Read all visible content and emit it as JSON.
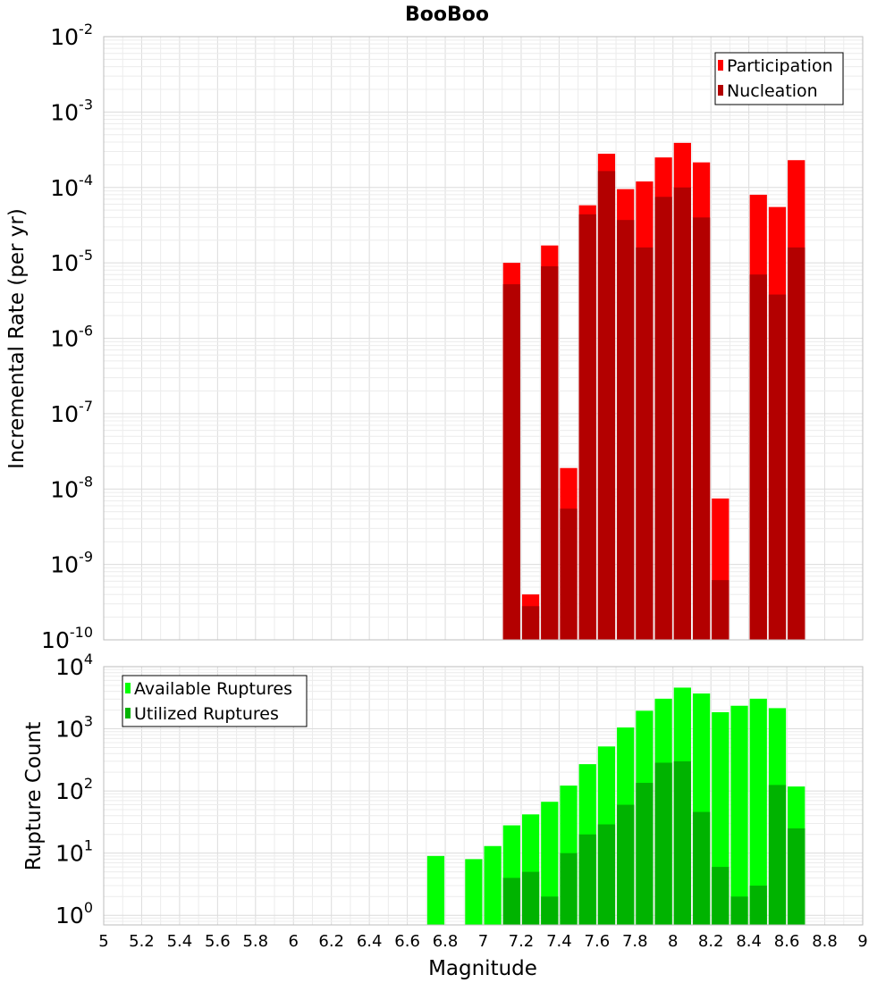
{
  "chart_data": [
    {
      "type": "bar",
      "title": "BooBoo",
      "xlabel": "Magnitude",
      "ylabel": "Incremental Rate (per yr)",
      "yscale": "log",
      "xlim": [
        5,
        9
      ],
      "ylim": [
        1e-10,
        0.01
      ],
      "y_tick_exponents": [
        "-2",
        "-3",
        "-4",
        "-5",
        "-6",
        "-7",
        "-8",
        "-9",
        "-10"
      ],
      "legend_position": "top-right",
      "x": [
        7.15,
        7.25,
        7.35,
        7.45,
        7.55,
        7.65,
        7.75,
        7.85,
        7.95,
        8.05,
        8.15,
        8.25,
        8.35,
        8.45,
        8.55,
        8.65
      ],
      "series": [
        {
          "name": "Participation",
          "color": "#ff0000",
          "values": [
            1e-05,
            4e-10,
            1.7e-05,
            1.9e-08,
            5.8e-05,
            0.00028,
            9.5e-05,
            0.00012,
            0.00025,
            0.00039,
            0.000215,
            7.5e-09,
            0,
            8e-05,
            5.5e-05,
            0.00023
          ]
        },
        {
          "name": "Nucleation",
          "color": "#b30000",
          "values": [
            5.2e-06,
            2.8e-10,
            9e-06,
            5.5e-09,
            4.4e-05,
            0.000165,
            3.7e-05,
            1.6e-05,
            7.5e-05,
            0.0001,
            4e-05,
            6.2e-10,
            0,
            7e-06,
            3.8e-06,
            1.6e-05
          ]
        }
      ]
    },
    {
      "type": "bar",
      "title": "",
      "xlabel": "Magnitude",
      "ylabel": "Rupture Count",
      "yscale": "log",
      "xlim": [
        5,
        9
      ],
      "ylim": [
        0.7,
        10000
      ],
      "y_tick_exponents": [
        "0",
        "1",
        "2",
        "3",
        "4"
      ],
      "x_tick_labels": [
        "5",
        "5.2",
        "5.4",
        "5.6",
        "5.8",
        "6",
        "6.2",
        "6.4",
        "6.6",
        "6.8",
        "7",
        "7.2",
        "7.4",
        "7.6",
        "7.8",
        "8",
        "8.2",
        "8.4",
        "8.6",
        "8.8",
        "9"
      ],
      "legend_position": "top-left",
      "x": [
        6.75,
        6.85,
        6.95,
        7.05,
        7.15,
        7.25,
        7.35,
        7.45,
        7.55,
        7.65,
        7.75,
        7.85,
        7.95,
        8.05,
        8.15,
        8.25,
        8.35,
        8.45,
        8.55,
        8.65
      ],
      "series": [
        {
          "name": "Available Ruptures",
          "color": "#00ff00",
          "values": [
            9,
            0,
            8,
            13,
            28,
            42,
            67,
            122,
            270,
            520,
            1050,
            1950,
            3050,
            4600,
            3700,
            1850,
            2350,
            3050,
            2150,
            118
          ]
        },
        {
          "name": "Utilized Ruptures",
          "color": "#00b300",
          "values": [
            0,
            0,
            0,
            0,
            4,
            5,
            2,
            10,
            20,
            29,
            60,
            135,
            285,
            300,
            46,
            6,
            2,
            3,
            125,
            25
          ]
        }
      ]
    }
  ]
}
